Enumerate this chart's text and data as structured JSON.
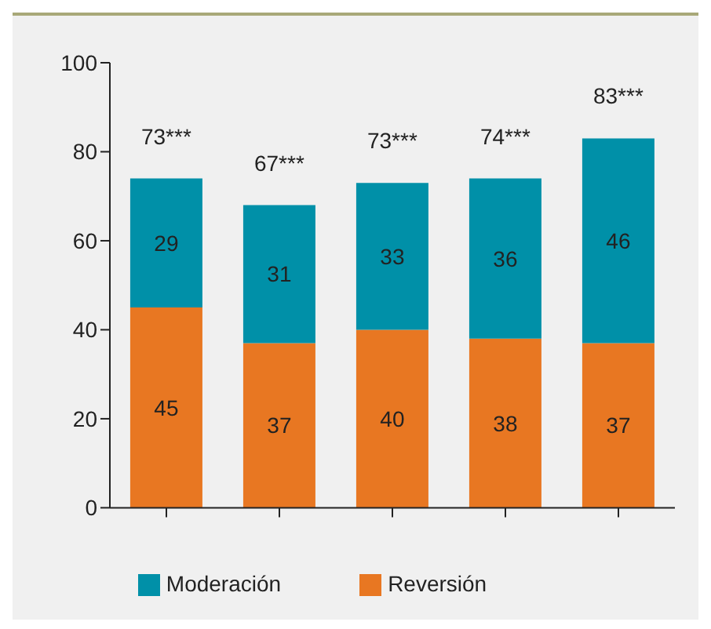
{
  "chart_data": {
    "type": "bar",
    "stacked": true,
    "categories": [
      null,
      null,
      null,
      null,
      null
    ],
    "series": [
      {
        "name": "Reversión",
        "color": "#e87722",
        "values": [
          45,
          37,
          40,
          38,
          37
        ]
      },
      {
        "name": "Moderación",
        "color": "#0090a8",
        "values": [
          29,
          31,
          33,
          36,
          46
        ]
      }
    ],
    "totals": [
      "73***",
      "67***",
      "73***",
      "74***",
      "83***"
    ],
    "data_labels": true,
    "ylim": [
      0,
      100
    ],
    "yticks": [
      0,
      20,
      40,
      60,
      80,
      100
    ],
    "grid": false,
    "legend": "bottom"
  }
}
